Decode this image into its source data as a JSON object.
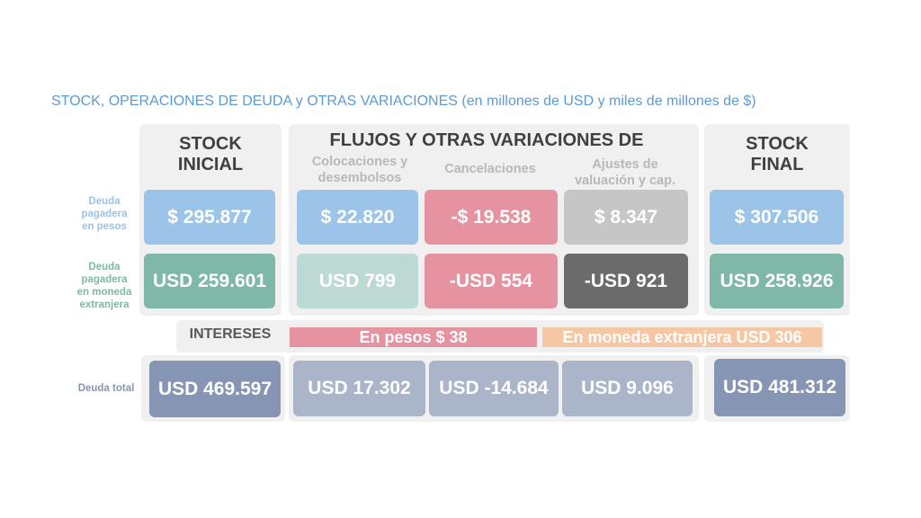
{
  "title": "STOCK, OPERACIONES DE DEUDA y OTRAS VARIACIONES (en millones de USD y miles de millones de $)",
  "headers": {
    "stock_inicial": [
      "STOCK",
      "INICIAL"
    ],
    "flujos": "FLUJOS Y OTRAS VARIACIONES DE",
    "colocaciones": [
      "Colocaciones y",
      "desembolsos"
    ],
    "cancelaciones": "Cancelaciones",
    "ajustes": [
      "Ajustes de",
      "valuación y cap."
    ],
    "stock_final": [
      "STOCK",
      "FINAL"
    ]
  },
  "row_labels": {
    "pesos": [
      "Deuda",
      "pagadera",
      "en pesos"
    ],
    "extranjera": [
      "Deuda",
      "pagadera",
      "en moneda",
      "extranjera"
    ],
    "total": "Deuda total"
  },
  "rows": {
    "pesos": {
      "stock_inicial": "$ 295.877",
      "colocaciones": "$ 22.820",
      "cancelaciones": "-$ 19.538",
      "ajustes": "$ 8.347",
      "stock_final": "$ 307.506"
    },
    "extranjera": {
      "stock_inicial": "USD 259.601",
      "colocaciones": "USD 799",
      "cancelaciones": "-USD 554",
      "ajustes": "-USD 921",
      "stock_final": "USD 258.926"
    },
    "total": {
      "stock_inicial": "USD 469.597",
      "colocaciones": "USD 17.302",
      "cancelaciones": "USD -14.684",
      "ajustes": "USD 9.096",
      "stock_final": "USD 481.312"
    }
  },
  "intereses": {
    "label": "INTERESES",
    "pesos": "En pesos $ 38",
    "extranjera": "En moneda extranjera USD 306"
  },
  "colors": {
    "title": "#5b9bd5",
    "blue": "#9cc3e8",
    "green": "#7fb8a8",
    "light_green": "#bdd9d3",
    "pink": "#e593a0",
    "gray": "#c6c6c6",
    "dark_gray": "#6b6b6b",
    "navy": "#8595b3",
    "light_navy": "#aab5c9",
    "peach": "#f5c7a5"
  }
}
